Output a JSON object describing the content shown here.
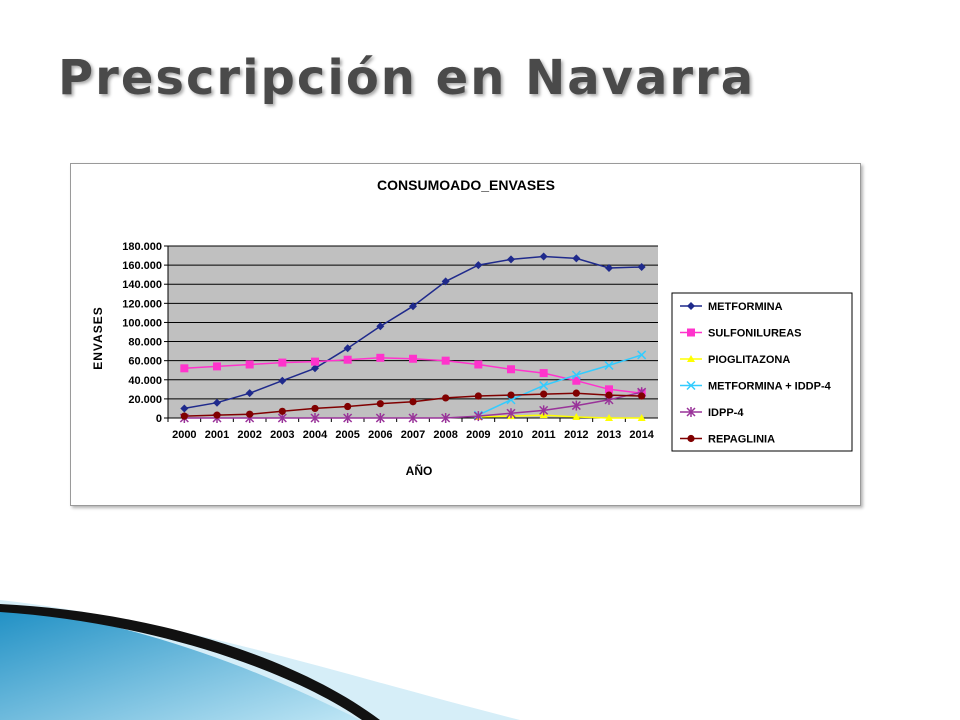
{
  "slide": {
    "title": "Prescripción en Navarra"
  },
  "chart_data": {
    "type": "line",
    "title": "CONSUMOADO_ENVASES",
    "xlabel": "AÑO",
    "ylabel": "ENVASES",
    "categories": [
      "2000",
      "2001",
      "2002",
      "2003",
      "2004",
      "2005",
      "2006",
      "2007",
      "2008",
      "2009",
      "2010",
      "2011",
      "2012",
      "2013",
      "2014"
    ],
    "ylim": [
      0,
      180000
    ],
    "yticks": [
      "0",
      "20.000",
      "40.000",
      "60.000",
      "80.000",
      "100.000",
      "120.000",
      "140.000",
      "160.000",
      "180.000"
    ],
    "grid": true,
    "legend_position": "right",
    "plot_background": "#c0c0c0",
    "series": [
      {
        "name": "METFORMINA",
        "color": "#1f2a8c",
        "marker": "diamond",
        "values": [
          10000,
          16000,
          26000,
          39000,
          52000,
          73000,
          96000,
          117000,
          143000,
          160000,
          166000,
          169000,
          167000,
          157000,
          158000
        ]
      },
      {
        "name": "SULFONILUREAS",
        "color": "#ff33cc",
        "marker": "square",
        "values": [
          52000,
          54000,
          56000,
          58000,
          59000,
          61000,
          63000,
          62000,
          60000,
          56000,
          51000,
          47000,
          39000,
          30000,
          26000
        ]
      },
      {
        "name": "PIOGLITAZONA",
        "color": "#ffff00",
        "marker": "triangle",
        "values": [
          null,
          null,
          null,
          null,
          null,
          null,
          null,
          null,
          null,
          1000,
          2000,
          3000,
          1000,
          0,
          0
        ]
      },
      {
        "name": "METFORMINA + IDDP-4",
        "color": "#33ccff",
        "marker": "x",
        "values": [
          null,
          null,
          null,
          null,
          null,
          null,
          null,
          null,
          null,
          3000,
          19000,
          34000,
          45000,
          55000,
          66000
        ]
      },
      {
        "name": "IDPP-4",
        "color": "#993399",
        "marker": "star",
        "values": [
          0,
          0,
          0,
          0,
          0,
          0,
          0,
          0,
          0,
          2000,
          5000,
          8000,
          13000,
          19000,
          27000
        ]
      },
      {
        "name": "REPAGLINIA",
        "color": "#800000",
        "marker": "circle",
        "values": [
          2000,
          3000,
          4000,
          7000,
          10000,
          12000,
          15000,
          17000,
          21000,
          23000,
          24000,
          25000,
          26000,
          24000,
          23000
        ]
      }
    ]
  },
  "colors": {
    "accent": "#29a3d6",
    "dark": "#1a1a1a"
  }
}
